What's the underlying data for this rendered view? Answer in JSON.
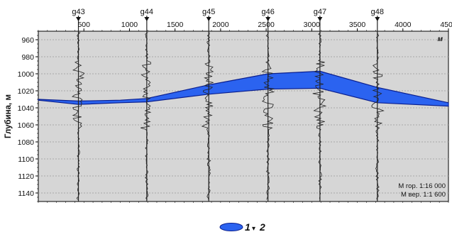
{
  "axes": {
    "y_title": "Глубина, м",
    "unit": "м",
    "x_min": 0,
    "x_max": 4500,
    "y_min": 950,
    "y_max": 1150,
    "x_ticks": [
      500,
      1000,
      1500,
      2000,
      2500,
      3000,
      3500,
      4000,
      4500
    ],
    "y_ticks": [
      960,
      980,
      1000,
      1020,
      1040,
      1060,
      1080,
      1100,
      1120,
      1140
    ]
  },
  "wells": [
    {
      "name": "g43",
      "x": 440
    },
    {
      "name": "g44",
      "x": 1190
    },
    {
      "name": "g45",
      "x": 1870
    },
    {
      "name": "g46",
      "x": 2520
    },
    {
      "name": "g47",
      "x": 3090
    },
    {
      "name": "g48",
      "x": 3720
    }
  ],
  "layer": {
    "top": [
      [
        0,
        1030
      ],
      [
        440,
        1032
      ],
      [
        900,
        1031
      ],
      [
        1190,
        1029
      ],
      [
        1870,
        1013
      ],
      [
        2520,
        1000
      ],
      [
        3090,
        997
      ],
      [
        3720,
        1016
      ],
      [
        4500,
        1034
      ]
    ],
    "bottom": [
      [
        4500,
        1038
      ],
      [
        3720,
        1034
      ],
      [
        3090,
        1017
      ],
      [
        2520,
        1018
      ],
      [
        1870,
        1024
      ],
      [
        1190,
        1033
      ],
      [
        900,
        1034
      ],
      [
        440,
        1036
      ],
      [
        0,
        1031
      ]
    ],
    "fill": "#2b63f0",
    "stroke": "#0a1f8f"
  },
  "scale": {
    "horizontal": "М гор. 1:16 000",
    "vertical": "М вер. 1:1 600"
  },
  "legend": {
    "label_1": "1",
    "separator": "▾",
    "label_2": "2"
  },
  "colors": {
    "plot_bg": "#d6d6d6",
    "grid": "#a8a8a8",
    "log_curve": "#222222"
  }
}
